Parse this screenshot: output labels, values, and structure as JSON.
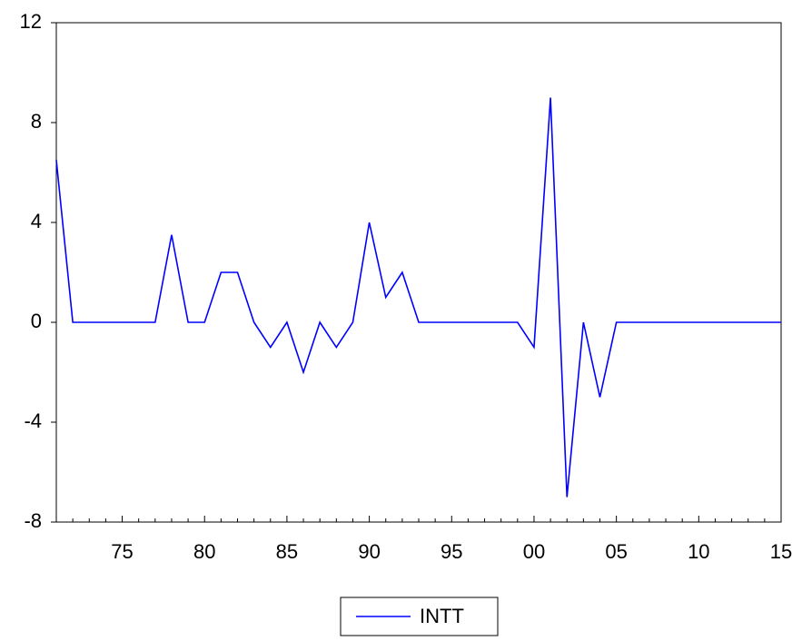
{
  "chart_data": {
    "type": "line",
    "categories": [
      null,
      null,
      null,
      null,
      "75",
      null,
      null,
      null,
      null,
      "80",
      null,
      null,
      null,
      null,
      "85",
      null,
      null,
      null,
      null,
      "90",
      null,
      null,
      null,
      null,
      "95",
      null,
      null,
      null,
      null,
      "00",
      null,
      null,
      null,
      null,
      "05",
      null,
      null,
      null,
      null,
      "10",
      null,
      null,
      null,
      null,
      "15"
    ],
    "series": [
      {
        "name": "INTT",
        "color": "#0000ff",
        "values": [
          6.5,
          0,
          0,
          0,
          0,
          0,
          0,
          3.5,
          0,
          0,
          2,
          2,
          0,
          -1,
          0,
          -2,
          0,
          -1,
          0,
          4,
          1,
          2,
          0,
          0,
          0,
          0,
          0,
          0,
          0,
          -1,
          9,
          -7,
          0,
          -3,
          0,
          0,
          0,
          0,
          0,
          0,
          0,
          0,
          0,
          0,
          0
        ]
      }
    ],
    "ylim": [
      -8,
      12
    ],
    "yticks": [
      -8,
      -4,
      0,
      4,
      8,
      12
    ],
    "grid": false
  }
}
